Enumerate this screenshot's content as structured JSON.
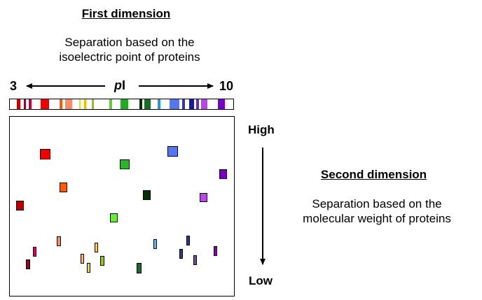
{
  "first_dimension": {
    "title": "First dimension",
    "description_line1": "Separation based on the",
    "description_line2": "isoelectric point of proteins",
    "axis_left": "3",
    "axis_right": "10",
    "axis_label_italic": "p",
    "axis_label_rest": "I"
  },
  "second_dimension": {
    "title": "Second dimension",
    "description_line1": "Separation based on the",
    "description_line2": "molecular weight of proteins",
    "top_label": "High",
    "bottom_label": "Low"
  },
  "strip_bands": [
    "#cc0000",
    "#8b0a2a",
    "#cc0033",
    "#ee0000",
    "#ff5a00",
    "#ff8a65",
    "#f0e000",
    "#f5b800",
    "#a0c000",
    "#66cc33",
    "#22aa22",
    "#003300",
    "#1a6b2a",
    "#2299dd",
    "#5577ee",
    "#3333bb",
    "#1a1a9c",
    "#6633aa",
    "#bb44ee",
    "#7700cc"
  ],
  "gel_spots": [
    {
      "color": "#ee0000"
    },
    {
      "color": "#bb0000"
    },
    {
      "color": "#ff5a00"
    },
    {
      "color": "#22bb22"
    },
    {
      "color": "#66ee33"
    },
    {
      "color": "#003300"
    },
    {
      "color": "#5577ee"
    },
    {
      "color": "#7700cc"
    },
    {
      "color": "#bb44ee"
    },
    {
      "color": "#ff8a65"
    },
    {
      "color": "#cc0066"
    },
    {
      "color": "#8b0a2a"
    },
    {
      "color": "#ffb070"
    },
    {
      "color": "#ffcc33"
    },
    {
      "color": "#f5e000"
    },
    {
      "color": "#99cc00"
    },
    {
      "color": "#1a6b2a"
    },
    {
      "color": "#55bbee"
    },
    {
      "color": "#2233cc"
    },
    {
      "color": "#3333aa"
    },
    {
      "color": "#7744bb"
    },
    {
      "color": "#8800aa"
    }
  ]
}
